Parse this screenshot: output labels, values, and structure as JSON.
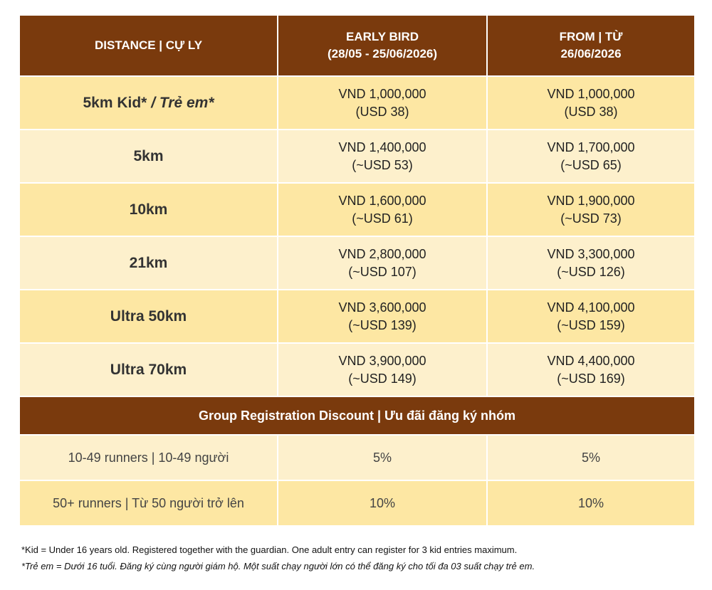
{
  "table": {
    "header": [
      [
        "DISTANCE | CỰ LY"
      ],
      [
        "EARLY BIRD",
        "(28/05 - 25/06/2026)"
      ],
      [
        "FROM | TỪ",
        "26/06/2026"
      ]
    ],
    "rows": [
      {
        "label": "5km Kid*",
        "label_italic": "/ Trẻ em*",
        "early": [
          "VND 1,000,000",
          "(USD 38)"
        ],
        "from": [
          "VND 1,000,000",
          "(USD 38)"
        ]
      },
      {
        "label": "5km",
        "early": [
          "VND 1,400,000",
          "(~USD 53)"
        ],
        "from": [
          "VND 1,700,000",
          "(~USD 65)"
        ]
      },
      {
        "label": "10km",
        "early": [
          "VND 1,600,000",
          "(~USD 61)"
        ],
        "from": [
          "VND 1,900,000",
          "(~USD 73)"
        ]
      },
      {
        "label": "21km",
        "early": [
          "VND 2,800,000",
          "(~USD 107)"
        ],
        "from": [
          "VND 3,300,000",
          "(~USD 126)"
        ]
      },
      {
        "label": "Ultra 50km",
        "early": [
          "VND 3,600,000",
          "(~USD 139)"
        ],
        "from": [
          "VND 4,100,000",
          "(~USD 159)"
        ]
      },
      {
        "label": "Ultra 70km",
        "early": [
          "VND 3,900,000",
          "(~USD 149)"
        ],
        "from": [
          "VND 4,400,000",
          "(~USD 169)"
        ]
      }
    ],
    "group_title": "Group Registration Discount | Ưu đãi đăng ký nhóm",
    "group_rows": [
      [
        "10-49 runners | 10-49 người",
        "5%",
        "5%"
      ],
      [
        "50+ runners | Từ 50 người trở lên",
        "10%",
        "10%"
      ]
    ]
  },
  "footnotes": [
    "*Kid = Under 16 years old. Registered together with the guardian. One adult entry can register for 3 kid entries maximum.",
    "*Trẻ em = Dưới 16 tuổi. Đăng ký cùng người giám hộ. Một suất chạy người lớn có thể đăng ký cho tối đa 03 suất chạy trẻ em."
  ]
}
